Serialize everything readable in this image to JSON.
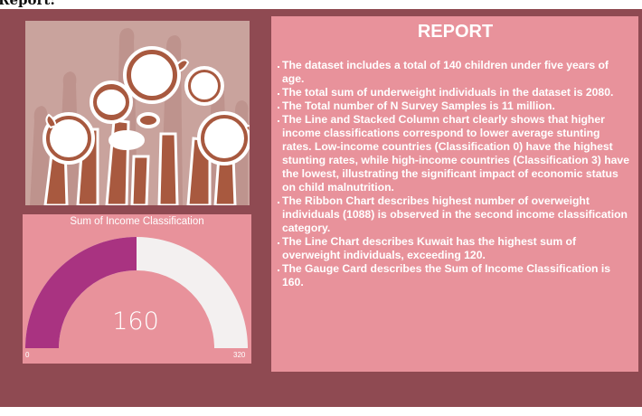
{
  "page": {
    "title": "Report:"
  },
  "colors": {
    "canvas": "#8f4a52",
    "card": "#e8929b",
    "image_bg": "#c9a39d",
    "gauge_fill": "#a93381",
    "gauge_track": "#f3f0f0",
    "text": "#ffffff"
  },
  "image": {
    "subject": "raised-hands-holding-empty-bowls-illustration"
  },
  "gauge": {
    "title": "Sum of Income Classification",
    "value": "160",
    "min": "0",
    "max": "320",
    "fraction": 0.5
  },
  "report": {
    "title": "REPORT",
    "items": [
      "The dataset includes a total of 140 children under five years of age.",
      "The total sum of underweight individuals in the dataset is 2080.",
      "The Total number of N Survey Samples is 11 million.",
      "The Line and Stacked Column chart clearly shows that higher income classifications correspond to lower average stunting rates. Low-income countries (Classification 0) have the highest stunting rates, while high-income countries (Classification 3) have the lowest, illustrating the significant impact of economic status on child malnutrition.",
      "The Ribbon Chart describes highest number of overweight individuals (1088) is observed in the second income classification category.",
      "The Line Chart describes Kuwait has the highest sum of overweight individuals, exceeding 120.",
      "The Gauge Card describes the Sum of Income Classification is 160."
    ]
  }
}
